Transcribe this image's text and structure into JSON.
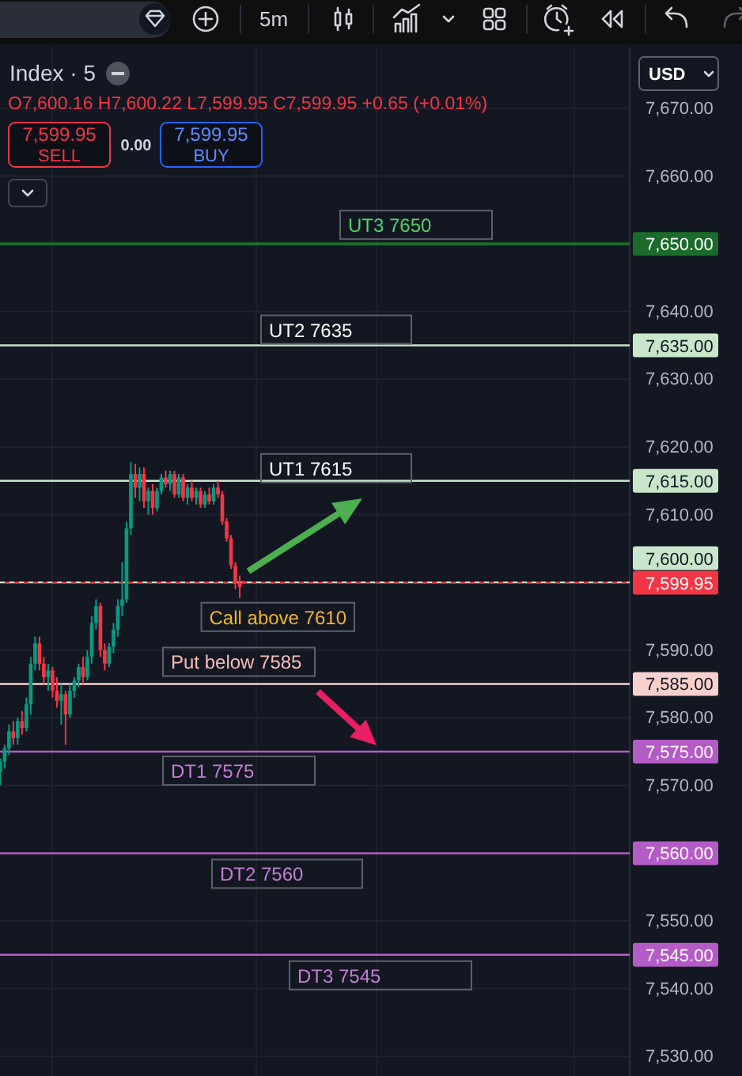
{
  "chart_data": {
    "type": "candlestick",
    "title": "Index · 5",
    "subtitle": "O7,600.16 H7,600.22 L7,599.95 C7,599.95 +0.65 (+0.01%)",
    "categories": [
      null,
      null,
      null,
      null,
      null,
      null,
      null,
      null,
      null,
      null,
      null,
      null,
      null,
      null,
      null,
      null,
      null,
      null,
      null,
      null,
      null,
      null,
      null,
      null,
      null,
      null,
      null,
      null,
      null,
      null,
      null,
      null,
      null,
      null,
      null,
      null,
      null,
      null,
      null,
      null,
      null,
      null,
      null,
      null,
      null,
      null,
      null,
      null,
      null,
      null,
      null,
      null,
      null,
      null,
      null,
      null,
      null,
      null,
      null,
      null,
      null,
      null,
      null,
      null,
      null,
      null,
      null,
      null,
      null,
      null,
      null,
      null,
      null,
      null,
      null,
      null,
      null,
      null,
      null,
      null,
      null,
      null,
      null,
      null,
      null,
      null,
      null,
      null,
      null,
      null,
      null,
      null,
      null,
      null,
      null,
      null,
      null,
      null,
      null,
      null,
      null,
      null,
      null,
      null,
      null,
      null,
      null,
      null,
      null,
      null,
      null,
      null,
      null,
      null,
      null,
      null,
      null,
      null,
      null,
      null,
      null,
      null,
      null,
      null,
      null,
      null,
      null,
      null,
      null,
      null,
      null,
      null,
      null,
      null,
      null,
      null,
      null,
      null,
      null,
      null,
      null,
      null,
      null,
      null,
      null
    ],
    "ohlc": [
      [
        7572,
        7574,
        7570,
        7573.5
      ],
      [
        7573.5,
        7576,
        7572.5,
        7575.5
      ],
      [
        7575.5,
        7579,
        7574.5,
        7578
      ],
      [
        7578,
        7579.5,
        7576,
        7577
      ],
      [
        7577,
        7580,
        7576,
        7579.5
      ],
      [
        7579.5,
        7581,
        7577.5,
        7578.5
      ],
      [
        7578.5,
        7583,
        7578,
        7582
      ],
      [
        7582,
        7589,
        7580.5,
        7588
      ],
      [
        7588,
        7592,
        7587,
        7591
      ],
      [
        7591,
        7592,
        7587,
        7588
      ],
      [
        7588,
        7589,
        7585,
        7586
      ],
      [
        7586,
        7588,
        7584,
        7587
      ],
      [
        7587,
        7587.5,
        7583,
        7584
      ],
      [
        7584,
        7586,
        7581.5,
        7582.5
      ],
      [
        7582.5,
        7585,
        7579,
        7583.5
      ],
      [
        7583.5,
        7584,
        7576,
        7580.5
      ],
      [
        7580.5,
        7585,
        7580,
        7584
      ],
      [
        7584,
        7586,
        7583,
        7585.5
      ],
      [
        7585.5,
        7588,
        7584.5,
        7587.5
      ],
      [
        7587.5,
        7589,
        7585,
        7586
      ],
      [
        7586,
        7590,
        7585.5,
        7589
      ],
      [
        7589,
        7595,
        7588,
        7594
      ],
      [
        7594,
        7597.5,
        7593,
        7596.5
      ],
      [
        7596.5,
        7597,
        7589,
        7590
      ],
      [
        7590,
        7591,
        7587,
        7588
      ],
      [
        7588,
        7591,
        7587.5,
        7590.5
      ],
      [
        7590.5,
        7594,
        7589.5,
        7593
      ],
      [
        7593,
        7597.5,
        7592,
        7596.5
      ],
      [
        7596.5,
        7603,
        7595,
        7597.5
      ],
      [
        7597.5,
        7609,
        7597,
        7608
      ],
      [
        7608,
        7617.8,
        7607,
        7616
      ],
      [
        7616,
        7617.5,
        7612.5,
        7614
      ],
      [
        7614,
        7617,
        7612,
        7616
      ],
      [
        7616,
        7617,
        7611,
        7612
      ],
      [
        7612,
        7614,
        7610,
        7613.5
      ],
      [
        7613.5,
        7614.5,
        7610,
        7611
      ],
      [
        7611,
        7614,
        7610.5,
        7613.5
      ],
      [
        7613.5,
        7616,
        7613,
        7615.5
      ],
      [
        7615.5,
        7616.5,
        7614,
        7614.5
      ],
      [
        7614.5,
        7616.5,
        7613.5,
        7616
      ],
      [
        7616,
        7616.5,
        7612.5,
        7613
      ],
      [
        7613,
        7616,
        7612.5,
        7615.5
      ],
      [
        7615.5,
        7616,
        7612,
        7612.5
      ],
      [
        7612.5,
        7614.5,
        7611.5,
        7614
      ],
      [
        7614,
        7615,
        7612,
        7612.5
      ],
      [
        7612.5,
        7614,
        7611.5,
        7613.5
      ],
      [
        7613.5,
        7614,
        7611,
        7611.5
      ],
      [
        7611.5,
        7613.5,
        7611,
        7613
      ],
      [
        7613,
        7614,
        7611.5,
        7612
      ],
      [
        7612,
        7614.5,
        7611.5,
        7614
      ],
      [
        7614,
        7615,
        7612.5,
        7613
      ],
      [
        7613,
        7613.5,
        7608.5,
        7609
      ],
      [
        7609,
        7609.5,
        7606,
        7606.5
      ],
      [
        7606.5,
        7607,
        7602,
        7602.5
      ],
      [
        7602.5,
        7603,
        7599,
        7600
      ],
      [
        7600,
        7601,
        7597.7,
        7599.3
      ],
      [
        7600.16,
        7600.22,
        7599.95,
        7599.95
      ],
      null,
      null,
      null,
      null,
      null,
      null,
      null,
      null,
      null,
      null,
      null,
      null,
      null,
      null,
      null,
      null,
      null,
      null,
      null,
      null,
      null,
      null,
      null,
      null,
      null,
      null,
      null,
      null,
      null,
      null,
      null,
      null,
      null,
      null,
      null,
      null,
      null,
      null,
      null,
      null,
      null,
      null,
      null,
      null,
      null,
      null,
      null,
      null,
      null,
      null,
      null,
      null,
      null,
      null,
      null,
      null,
      null,
      null,
      null,
      null,
      null,
      null,
      null,
      null,
      null,
      null,
      null,
      null,
      null,
      null,
      null,
      null,
      null,
      null,
      null,
      null,
      null,
      null,
      null,
      null,
      null,
      null,
      null,
      null,
      null,
      null,
      null,
      null
    ],
    "ylim": [
      7527.1,
      7679
    ],
    "yticks": [
      {
        "value": 7530,
        "label": "7,530.00"
      },
      {
        "value": 7540,
        "label": "7,540.00"
      },
      {
        "value": 7550,
        "label": "7,550.00"
      },
      {
        "value": 7570,
        "label": "7,570.00"
      },
      {
        "value": 7580,
        "label": "7,580.00"
      },
      {
        "value": 7590,
        "label": "7,590.00"
      },
      {
        "value": 7610,
        "label": "7,610.00"
      },
      {
        "value": 7620,
        "label": "7,620.00"
      },
      {
        "value": 7630,
        "label": "7,630.00"
      },
      {
        "value": 7640,
        "label": "7,640.00"
      },
      {
        "value": 7660,
        "label": "7,660.00"
      },
      {
        "value": 7670,
        "label": "7,670.00"
      }
    ],
    "grid": "y",
    "tick_labels": "y",
    "ref_lines": [
      {
        "axis": "y",
        "value": 7650,
        "label": "UT3 7650",
        "color": "#1b6b2a"
      },
      {
        "axis": "y",
        "value": 7635,
        "label": "UT2 7635",
        "color": "#c8e6c9"
      },
      {
        "axis": "y",
        "value": 7615,
        "label": "UT1 7615",
        "color": "#c8e6c9"
      },
      {
        "axis": "y",
        "value": 7600,
        "color": "#c8e6c9",
        "line_style": "dashed"
      },
      {
        "axis": "y",
        "value": 7599.95,
        "color": "#f23645",
        "line_style": "dashed"
      },
      {
        "axis": "y",
        "value": 7585,
        "label": "Put below 7585",
        "color": "#f8d0cc"
      },
      {
        "axis": "y",
        "value": 7575,
        "label": "DT1 7575",
        "color": "#b45cc6"
      },
      {
        "axis": "y",
        "value": 7560,
        "label": "DT2 7560",
        "color": "#b45cc6"
      },
      {
        "axis": "y",
        "value": 7545,
        "label": "DT3 7545",
        "color": "#b45cc6"
      }
    ],
    "annotations": [
      "5m",
      "USD",
      "7,599.95",
      "SELL",
      "0.00",
      "7,599.95",
      "BUY",
      "Call above 7610",
      "7,650.00",
      "7,635.00",
      "7,615.00",
      "7,599.95",
      "7,600.00",
      "7,585.00",
      "7,575.00",
      "7,560.00",
      "7,545.00"
    ]
  }
}
